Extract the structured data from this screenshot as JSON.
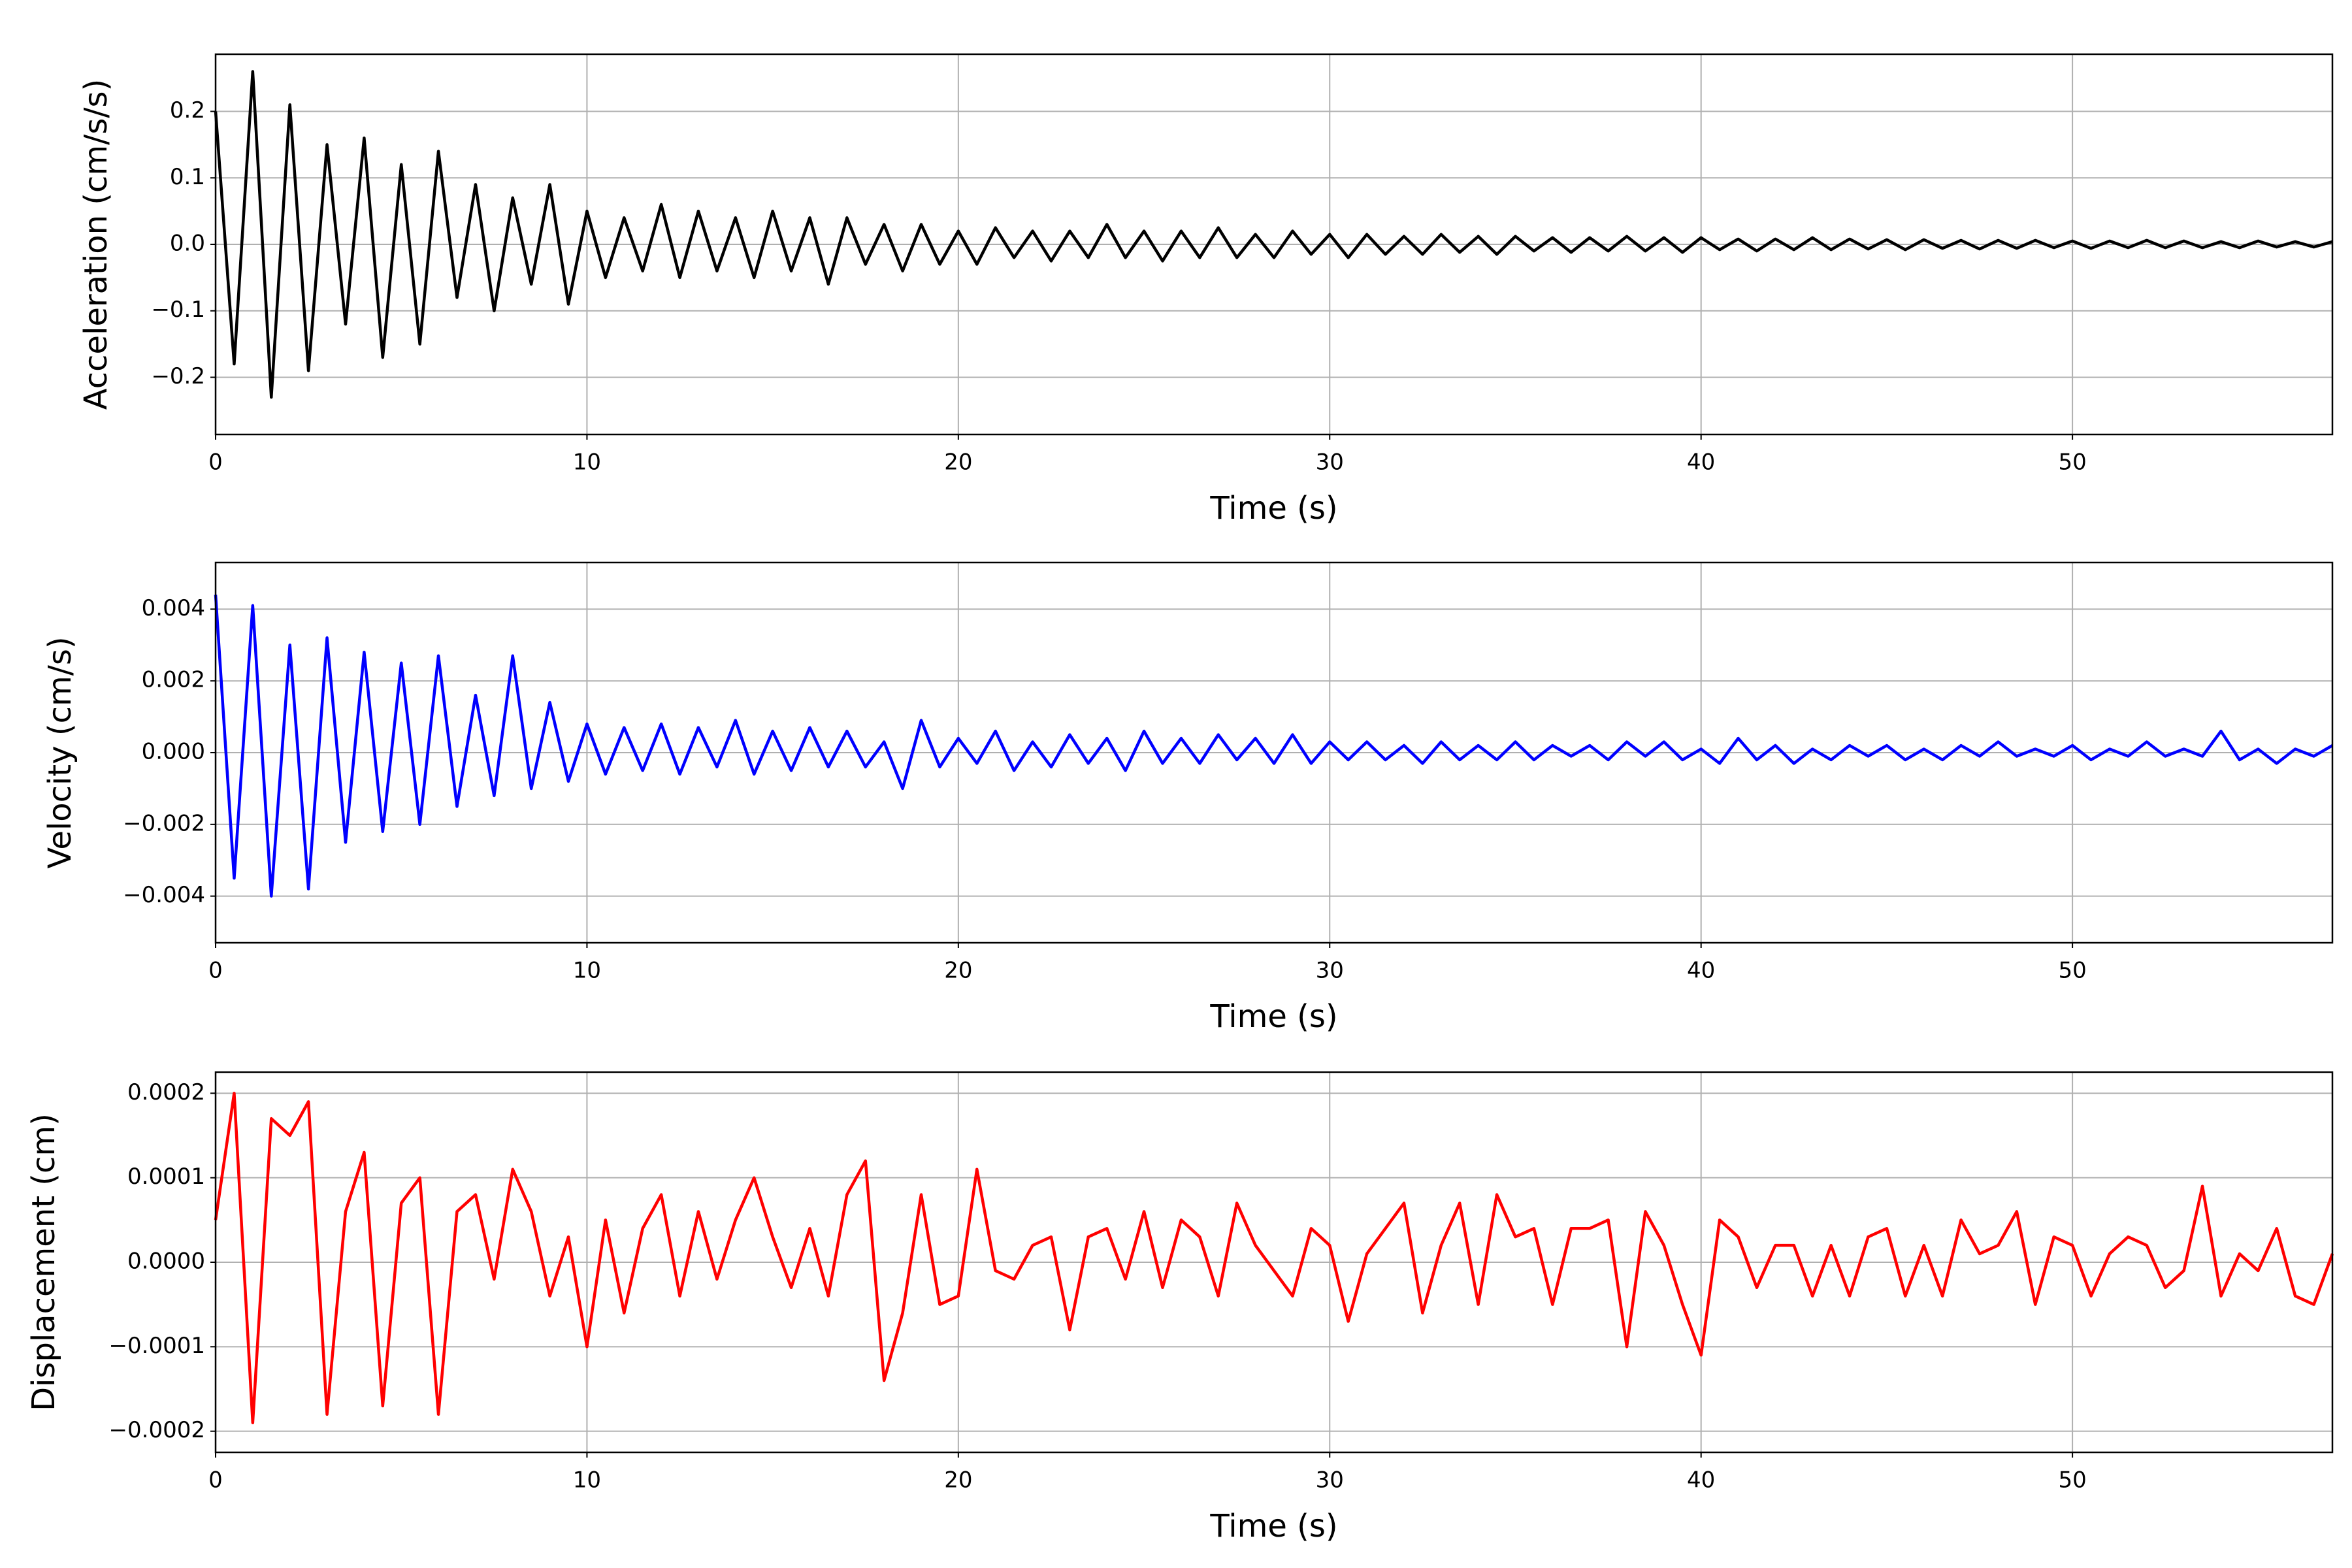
{
  "chart_data": [
    {
      "type": "line",
      "xlabel": "Time (s)",
      "ylabel": "Acceleration (cm/s/s)",
      "color": "#000000",
      "grid": true,
      "xlim": [
        0,
        57
      ],
      "xticks": [
        0,
        10,
        20,
        30,
        40,
        50
      ],
      "ylim": [
        -0.286,
        0.286
      ],
      "yticks": [
        {
          "value": -0.2,
          "label": "−0.2"
        },
        {
          "value": -0.1,
          "label": "−0.1"
        },
        {
          "value": 0,
          "label": "0.0"
        },
        {
          "value": 0.1,
          "label": "0.1"
        },
        {
          "value": 0.2,
          "label": "0.2"
        }
      ],
      "x": [
        0,
        0.5,
        1,
        1.5,
        2,
        2.5,
        3,
        3.5,
        4,
        4.5,
        5,
        5.5,
        6,
        6.5,
        7,
        7.5,
        8,
        8.5,
        9,
        9.5,
        10,
        10.5,
        11,
        11.5,
        12,
        12.5,
        13,
        13.5,
        14,
        14.5,
        15,
        15.5,
        16,
        16.5,
        17,
        17.5,
        18,
        18.5,
        19,
        19.5,
        20,
        20.5,
        21,
        21.5,
        22,
        22.5,
        23,
        23.5,
        24,
        24.5,
        25,
        25.5,
        26,
        26.5,
        27,
        27.5,
        28,
        28.5,
        29,
        29.5,
        30,
        30.5,
        31,
        31.5,
        32,
        32.5,
        33,
        33.5,
        34,
        34.5,
        35,
        35.5,
        36,
        36.5,
        37,
        37.5,
        38,
        38.5,
        39,
        39.5,
        40,
        40.5,
        41,
        41.5,
        42,
        42.5,
        43,
        43.5,
        44,
        44.5,
        45,
        45.5,
        46,
        46.5,
        47,
        47.5,
        48,
        48.5,
        49,
        49.5,
        50,
        50.5,
        51,
        51.5,
        52,
        52.5,
        53,
        53.5,
        54,
        54.5,
        55,
        55.5,
        56,
        56.5,
        57
      ],
      "values": [
        0.2,
        -0.18,
        0.26,
        -0.23,
        0.21,
        -0.19,
        0.15,
        -0.12,
        0.16,
        -0.17,
        0.12,
        -0.15,
        0.14,
        -0.08,
        0.09,
        -0.1,
        0.07,
        -0.06,
        0.09,
        -0.09,
        0.05,
        -0.05,
        0.04,
        -0.04,
        0.06,
        -0.05,
        0.05,
        -0.04,
        0.04,
        -0.05,
        0.05,
        -0.04,
        0.04,
        -0.06,
        0.04,
        -0.03,
        0.03,
        -0.04,
        0.03,
        -0.03,
        0.02,
        -0.03,
        0.025,
        -0.02,
        0.02,
        -0.025,
        0.02,
        -0.02,
        0.03,
        -0.02,
        0.02,
        -0.025,
        0.02,
        -0.02,
        0.025,
        -0.02,
        0.015,
        -0.02,
        0.02,
        -0.015,
        0.015,
        -0.02,
        0.015,
        -0.015,
        0.012,
        -0.015,
        0.015,
        -0.012,
        0.012,
        -0.015,
        0.012,
        -0.01,
        0.01,
        -0.012,
        0.01,
        -0.01,
        0.012,
        -0.01,
        0.01,
        -0.012,
        0.01,
        -0.008,
        0.008,
        -0.01,
        0.008,
        -0.008,
        0.01,
        -0.008,
        0.008,
        -0.007,
        0.007,
        -0.008,
        0.007,
        -0.006,
        0.006,
        -0.007,
        0.006,
        -0.006,
        0.006,
        -0.005,
        0.005,
        -0.006,
        0.005,
        -0.005,
        0.006,
        -0.005,
        0.005,
        -0.005,
        0.004,
        -0.005,
        0.005,
        -0.004,
        0.004,
        -0.004,
        0.004
      ]
    },
    {
      "type": "line",
      "xlabel": "Time (s)",
      "ylabel": "Velocity (cm/s)",
      "color": "#0000ff",
      "grid": true,
      "xlim": [
        0,
        57
      ],
      "xticks": [
        0,
        10,
        20,
        30,
        40,
        50
      ],
      "ylim": [
        -0.0053,
        0.0053
      ],
      "yticks": [
        {
          "value": -0.004,
          "label": "−0.004"
        },
        {
          "value": -0.002,
          "label": "−0.002"
        },
        {
          "value": 0,
          "label": "0.000"
        },
        {
          "value": 0.002,
          "label": "0.002"
        },
        {
          "value": 0.004,
          "label": "0.004"
        }
      ],
      "x": [
        0,
        0.5,
        1,
        1.5,
        2,
        2.5,
        3,
        3.5,
        4,
        4.5,
        5,
        5.5,
        6,
        6.5,
        7,
        7.5,
        8,
        8.5,
        9,
        9.5,
        10,
        10.5,
        11,
        11.5,
        12,
        12.5,
        13,
        13.5,
        14,
        14.5,
        15,
        15.5,
        16,
        16.5,
        17,
        17.5,
        18,
        18.5,
        19,
        19.5,
        20,
        20.5,
        21,
        21.5,
        22,
        22.5,
        23,
        23.5,
        24,
        24.5,
        25,
        25.5,
        26,
        26.5,
        27,
        27.5,
        28,
        28.5,
        29,
        29.5,
        30,
        30.5,
        31,
        31.5,
        32,
        32.5,
        33,
        33.5,
        34,
        34.5,
        35,
        35.5,
        36,
        36.5,
        37,
        37.5,
        38,
        38.5,
        39,
        39.5,
        40,
        40.5,
        41,
        41.5,
        42,
        42.5,
        43,
        43.5,
        44,
        44.5,
        45,
        45.5,
        46,
        46.5,
        47,
        47.5,
        48,
        48.5,
        49,
        49.5,
        50,
        50.5,
        51,
        51.5,
        52,
        52.5,
        53,
        53.5,
        54,
        54.5,
        55,
        55.5,
        56,
        56.5,
        57
      ],
      "values": [
        0.0044,
        -0.0035,
        0.0041,
        -0.004,
        0.003,
        -0.0038,
        0.0032,
        -0.0025,
        0.0028,
        -0.0022,
        0.0025,
        -0.002,
        0.0027,
        -0.0015,
        0.0016,
        -0.0012,
        0.0027,
        -0.001,
        0.0014,
        -0.0008,
        0.0008,
        -0.0006,
        0.0007,
        -0.0005,
        0.0008,
        -0.0006,
        0.0007,
        -0.0004,
        0.0009,
        -0.0006,
        0.0006,
        -0.0005,
        0.0007,
        -0.0004,
        0.0006,
        -0.0004,
        0.0003,
        -0.001,
        0.0009,
        -0.0004,
        0.0004,
        -0.0003,
        0.0006,
        -0.0005,
        0.0003,
        -0.0004,
        0.0005,
        -0.0003,
        0.0004,
        -0.0005,
        0.0006,
        -0.0003,
        0.0004,
        -0.0003,
        0.0005,
        -0.0002,
        0.0004,
        -0.0003,
        0.0005,
        -0.0003,
        0.0003,
        -0.0002,
        0.0003,
        -0.0002,
        0.0002,
        -0.0003,
        0.0003,
        -0.0002,
        0.0002,
        -0.0002,
        0.0003,
        -0.0002,
        0.0002,
        -0.0001,
        0.0002,
        -0.0002,
        0.0003,
        -0.0001,
        0.0003,
        -0.0002,
        0.0001,
        -0.0003,
        0.0004,
        -0.0002,
        0.0002,
        -0.0003,
        0.0001,
        -0.0002,
        0.0002,
        -0.0001,
        0.0002,
        -0.0002,
        0.0001,
        -0.0002,
        0.0002,
        -0.0001,
        0.0003,
        -0.0001,
        0.0001,
        -0.0001,
        0.0002,
        -0.0002,
        0.0001,
        -0.0001,
        0.0003,
        -0.0001,
        0.0001,
        -0.0001,
        0.0006,
        -0.0002,
        0.0001,
        -0.0003,
        0.0001,
        -0.0001,
        0.0002
      ]
    },
    {
      "type": "line",
      "xlabel": "Time (s)",
      "ylabel": "Displacement (cm)",
      "color": "#ff0000",
      "grid": true,
      "xlim": [
        0,
        57
      ],
      "xticks": [
        0,
        10,
        20,
        30,
        40,
        50
      ],
      "ylim": [
        -0.000225,
        0.000225
      ],
      "yticks": [
        {
          "value": -0.0002,
          "label": "−0.0002"
        },
        {
          "value": -0.0001,
          "label": "−0.0001"
        },
        {
          "value": 0,
          "label": "0.0000"
        },
        {
          "value": 0.0001,
          "label": "0.0001"
        },
        {
          "value": 0.0002,
          "label": "0.0002"
        }
      ],
      "x": [
        0,
        0.5,
        1,
        1.5,
        2,
        2.5,
        3,
        3.5,
        4,
        4.5,
        5,
        5.5,
        6,
        6.5,
        7,
        7.5,
        8,
        8.5,
        9,
        9.5,
        10,
        10.5,
        11,
        11.5,
        12,
        12.5,
        13,
        13.5,
        14,
        14.5,
        15,
        15.5,
        16,
        16.5,
        17,
        17.5,
        18,
        18.5,
        19,
        19.5,
        20,
        20.5,
        21,
        21.5,
        22,
        22.5,
        23,
        23.5,
        24,
        24.5,
        25,
        25.5,
        26,
        26.5,
        27,
        27.5,
        28,
        28.5,
        29,
        29.5,
        30,
        30.5,
        31,
        31.5,
        32,
        32.5,
        33,
        33.5,
        34,
        34.5,
        35,
        35.5,
        36,
        36.5,
        37,
        37.5,
        38,
        38.5,
        39,
        39.5,
        40,
        40.5,
        41,
        41.5,
        42,
        42.5,
        43,
        43.5,
        44,
        44.5,
        45,
        45.5,
        46,
        46.5,
        47,
        47.5,
        48,
        48.5,
        49,
        49.5,
        50,
        50.5,
        51,
        51.5,
        52,
        52.5,
        53,
        53.5,
        54,
        54.5,
        55,
        55.5,
        56,
        56.5,
        57
      ],
      "values": [
        5e-05,
        0.0002,
        -0.00019,
        0.00017,
        0.00015,
        0.00019,
        -0.00018,
        6e-05,
        0.00013,
        -0.00017,
        7e-05,
        0.0001,
        -0.00018,
        6e-05,
        8e-05,
        -2e-05,
        0.00011,
        6e-05,
        -4e-05,
        3e-05,
        -0.0001,
        5e-05,
        -6e-05,
        4e-05,
        8e-05,
        -4e-05,
        6e-05,
        -2e-05,
        5e-05,
        0.0001,
        3e-05,
        -3e-05,
        4e-05,
        -4e-05,
        8e-05,
        0.00012,
        -0.00014,
        -6e-05,
        8e-05,
        -5e-05,
        -4e-05,
        0.00011,
        -1e-05,
        -2e-05,
        2e-05,
        3e-05,
        -8e-05,
        3e-05,
        4e-05,
        -2e-05,
        6e-05,
        -3e-05,
        5e-05,
        3e-05,
        -4e-05,
        7e-05,
        2e-05,
        -1e-05,
        -4e-05,
        4e-05,
        2e-05,
        -7e-05,
        1e-05,
        4e-05,
        7e-05,
        -6e-05,
        2e-05,
        7e-05,
        -5e-05,
        8e-05,
        3e-05,
        4e-05,
        -5e-05,
        4e-05,
        4e-05,
        5e-05,
        -0.0001,
        6e-05,
        2e-05,
        -5e-05,
        -0.00011,
        5e-05,
        3e-05,
        -3e-05,
        2e-05,
        2e-05,
        -4e-05,
        2e-05,
        -4e-05,
        3e-05,
        4e-05,
        -4e-05,
        2e-05,
        -4e-05,
        5e-05,
        1e-05,
        2e-05,
        6e-05,
        -5e-05,
        3e-05,
        2e-05,
        -4e-05,
        1e-05,
        3e-05,
        2e-05,
        -3e-05,
        -1e-05,
        9e-05,
        -4e-05,
        1e-05,
        -1e-05,
        4e-05,
        -4e-05,
        -5e-05,
        1e-05
      ]
    }
  ]
}
